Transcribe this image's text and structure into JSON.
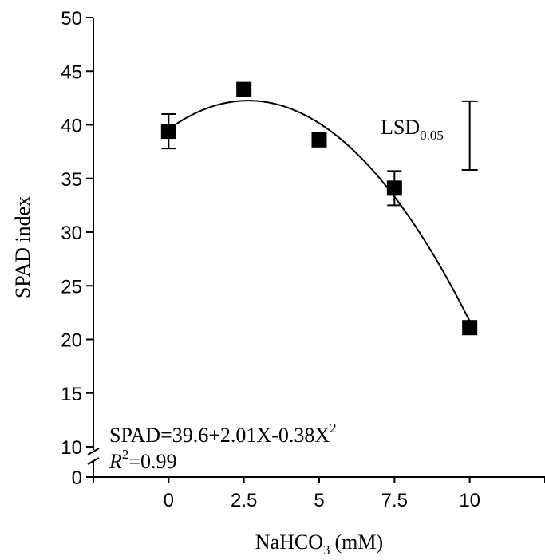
{
  "chart_data": {
    "type": "scatter",
    "title": "",
    "xlabel": "NaHCO",
    "xlabel_subscript": "3",
    "xlabel_unit": "(mM)",
    "ylabel": "SPAD index",
    "x_ticks": [
      "0",
      "2.5",
      "5",
      "7.5",
      "10"
    ],
    "y_ticks": [
      "0",
      "10",
      "15",
      "20",
      "25",
      "30",
      "35",
      "40",
      "45",
      "50"
    ],
    "xlim": [
      -2.5,
      12.5
    ],
    "ylim_upper": [
      10,
      50
    ],
    "ylim_lower": [
      0,
      10
    ],
    "axis_break": true,
    "grid": false,
    "points": [
      {
        "x": 0,
        "y": 39.4,
        "err": 1.6
      },
      {
        "x": 2.5,
        "y": 43.3,
        "err": 0.3
      },
      {
        "x": 5,
        "y": 38.6,
        "err": 0.3
      },
      {
        "x": 7.5,
        "y": 34.1,
        "err": 1.6
      },
      {
        "x": 10,
        "y": 21.1,
        "err": 0.3
      }
    ],
    "fit": {
      "a": 39.6,
      "b": 2.01,
      "c": -0.38
    },
    "lsd": {
      "label": "LSD",
      "subscript": "0.05",
      "x": 10,
      "low": 35.8,
      "high": 42.2
    },
    "equation": {
      "prefix": "SPAD=39.6+2.01X-0.38X",
      "exponent": "2",
      "r_symbol": "R",
      "r_exponent": "2",
      "r_value": "=0.99"
    }
  }
}
